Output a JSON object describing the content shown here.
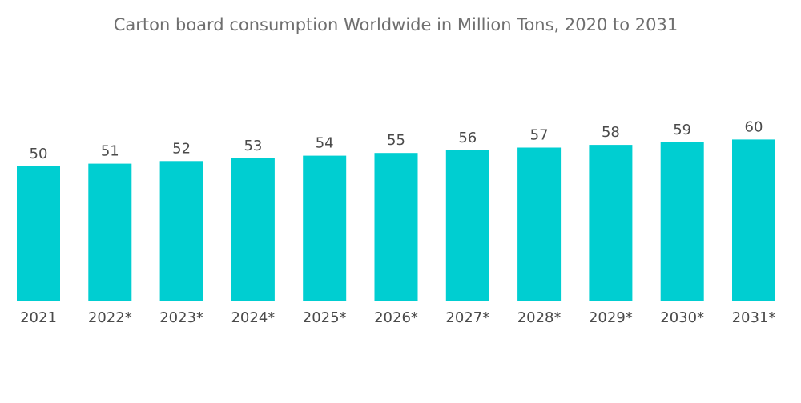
{
  "chart_data": {
    "type": "bar",
    "title": "Carton board consumption Worldwide in Million Tons, 2020 to 2031",
    "categories": [
      "2021",
      "2022*",
      "2023*",
      "2024*",
      "2025*",
      "2026*",
      "2027*",
      "2028*",
      "2029*",
      "2030*",
      "2031*"
    ],
    "values": [
      50,
      51,
      52,
      53,
      54,
      55,
      56,
      57,
      58,
      59,
      60
    ],
    "xlabel": "",
    "ylabel": "",
    "ylim": [
      0,
      60
    ],
    "grid": false,
    "legend": "none",
    "bar_color": "#00CED1",
    "text_color": "#4a4a4a",
    "title_color": "#6f6f6f"
  }
}
